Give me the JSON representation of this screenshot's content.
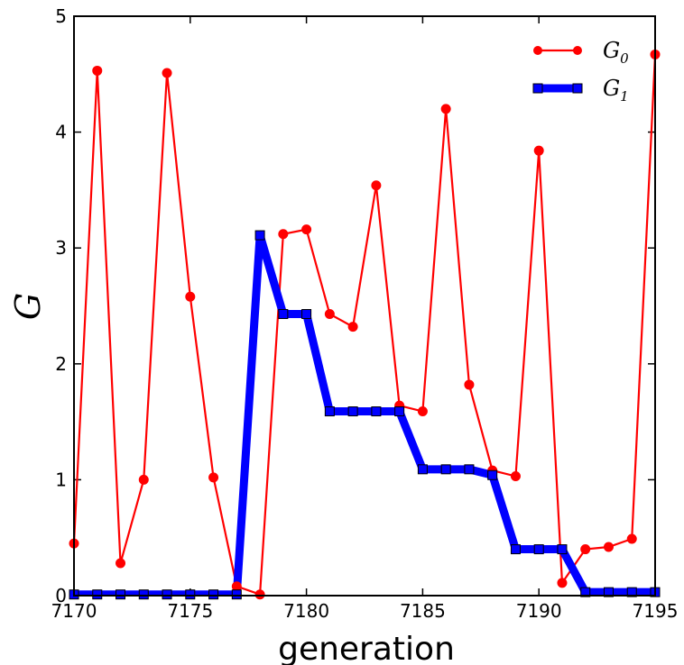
{
  "chart_data": {
    "type": "line",
    "xlabel": "generation",
    "ylabel": "G",
    "xlim": [
      7170,
      7195
    ],
    "ylim": [
      0,
      5
    ],
    "xticks": [
      7170,
      7175,
      7180,
      7185,
      7190,
      7195
    ],
    "yticks": [
      0,
      1,
      2,
      3,
      4,
      5
    ],
    "grid": false,
    "legend_position": "top-right",
    "x": [
      7170,
      7171,
      7172,
      7173,
      7174,
      7175,
      7176,
      7177,
      7178,
      7179,
      7180,
      7181,
      7182,
      7183,
      7184,
      7185,
      7186,
      7187,
      7188,
      7189,
      7190,
      7191,
      7192,
      7193,
      7194,
      7195
    ],
    "series": [
      {
        "name": "G",
        "name_subscript": "0",
        "color": "#ff0000",
        "marker": "circle",
        "values": [
          0.45,
          4.53,
          0.28,
          1.0,
          4.51,
          2.58,
          1.02,
          0.08,
          0.01,
          3.12,
          3.16,
          2.43,
          2.32,
          3.54,
          1.64,
          1.59,
          4.2,
          1.82,
          1.08,
          1.03,
          3.84,
          0.11,
          0.4,
          0.42,
          0.49,
          4.67
        ]
      },
      {
        "name": "G",
        "name_subscript": "1",
        "color": "#0000ff",
        "marker": "square",
        "values": [
          0.01,
          0.01,
          0.01,
          0.01,
          0.01,
          0.01,
          0.01,
          0.01,
          3.11,
          2.43,
          2.43,
          1.59,
          1.59,
          1.59,
          1.59,
          1.09,
          1.09,
          1.09,
          1.04,
          0.4,
          0.4,
          0.4,
          0.03,
          0.03,
          0.03,
          0.03
        ]
      }
    ]
  }
}
